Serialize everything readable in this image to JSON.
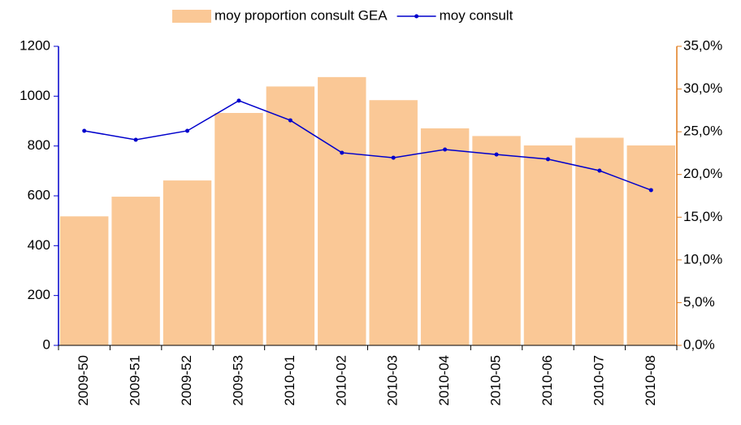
{
  "chart_data": {
    "type": "bar-line",
    "categories": [
      "2009-50",
      "2009-51",
      "2009-52",
      "2009-53",
      "2010-01",
      "2010-02",
      "2010-03",
      "2010-04",
      "2010-05",
      "2010-06",
      "2010-07",
      "2010-08"
    ],
    "series": [
      {
        "name": "moy proportion consult GEA",
        "type": "bar",
        "axis": "y2",
        "color": "#fac896",
        "values": [
          15.1,
          17.4,
          19.3,
          27.2,
          30.3,
          31.4,
          28.7,
          25.4,
          24.5,
          23.4,
          24.3,
          23.4
        ]
      },
      {
        "name": "moy consult",
        "type": "line",
        "axis": "y",
        "color": "#0000cc",
        "values": [
          861,
          825,
          861,
          982,
          903,
          773,
          753,
          786,
          766,
          747,
          701,
          623
        ]
      }
    ],
    "ylim": [
      0,
      1200
    ],
    "yticks": [
      0,
      200,
      400,
      600,
      800,
      1000,
      1200
    ],
    "y2lim": [
      0,
      35
    ],
    "y2ticks": [
      {
        "value": 0,
        "label": "0,0%"
      },
      {
        "value": 5,
        "label": "5,0%"
      },
      {
        "value": 10,
        "label": "10,0%"
      },
      {
        "value": 15,
        "label": "15,0%"
      },
      {
        "value": 20,
        "label": "20,0%"
      },
      {
        "value": 25,
        "label": "25,0%"
      },
      {
        "value": 30,
        "label": "30,0%"
      },
      {
        "value": 35,
        "label": "35,0%"
      }
    ],
    "legend": "top"
  }
}
